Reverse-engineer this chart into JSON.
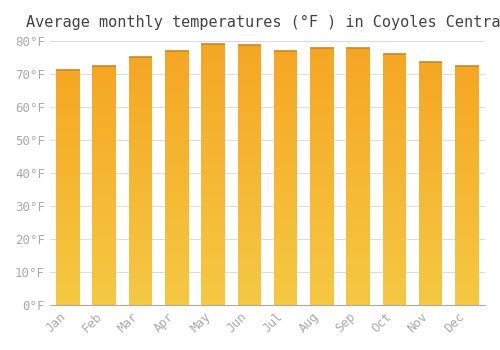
{
  "title": "Average monthly temperatures (°F ) in Coyoles Central",
  "months": [
    "Jan",
    "Feb",
    "Mar",
    "Apr",
    "May",
    "Jun",
    "Jul",
    "Aug",
    "Sep",
    "Oct",
    "Nov",
    "Dec"
  ],
  "values": [
    71.1,
    72.3,
    75.0,
    76.8,
    79.0,
    78.8,
    77.0,
    77.9,
    77.9,
    75.9,
    73.6,
    72.3
  ],
  "bar_color_top": "#F5A623",
  "bar_color_bottom": "#F5C842",
  "bar_edge_color": "#C8892A",
  "background_color": "#FFFFFF",
  "grid_color": "#DDDDDD",
  "tick_label_color": "#AAAAAA",
  "title_color": "#444444",
  "ylim": [
    0,
    80
  ],
  "yticks": [
    0,
    10,
    20,
    30,
    40,
    50,
    60,
    70,
    80
  ],
  "ytick_labels": [
    "0°F",
    "10°F",
    "20°F",
    "30°F",
    "40°F",
    "50°F",
    "60°F",
    "70°F",
    "80°F"
  ],
  "font_family": "monospace",
  "title_fontsize": 11,
  "tick_fontsize": 9
}
